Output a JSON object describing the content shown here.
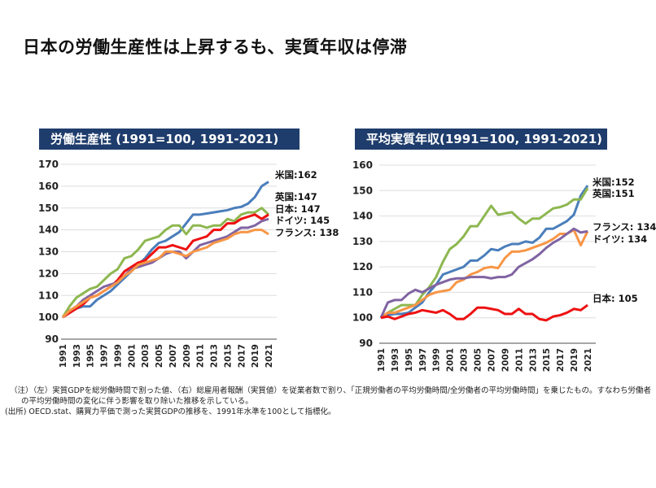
{
  "page_title": "日本の労働生産性は上昇するも、実質年収は停滞",
  "notes": [
    "（注）（左）実質GDPを総労働時間で割った値、（右）総雇用者報酬（実質値）を従業者数で割り、「正規労働者の平均労働時間/全労働者の平均労働時間」を乗じたもの。すなわち労働者の平均労働時間の変化に伴う影響を取り除いた推移を示している。",
    "(出所) OECD.stat、購買力平価で測った実質GDPの推移を、1991年水準を100として指標化。"
  ],
  "chart_data": [
    {
      "type": "line",
      "title": "労働生産性 (1991=100, 1991-2021)",
      "x": [
        1991,
        1992,
        1993,
        1994,
        1995,
        1996,
        1997,
        1998,
        1999,
        2000,
        2001,
        2002,
        2003,
        2004,
        2005,
        2006,
        2007,
        2008,
        2009,
        2010,
        2011,
        2012,
        2013,
        2014,
        2015,
        2016,
        2017,
        2018,
        2019,
        2020,
        2021
      ],
      "xticks": [
        "1991",
        "1993",
        "1995",
        "1997",
        "1999",
        "2001",
        "2003",
        "2005",
        "2007",
        "2009",
        "2011",
        "2013",
        "2015",
        "2017",
        "2019",
        "2021"
      ],
      "ylim": [
        90,
        170
      ],
      "yticks": [
        "90",
        "100",
        "110",
        "120",
        "130",
        "140",
        "150",
        "160",
        "170"
      ],
      "grid": true,
      "series": [
        {
          "name": "米国",
          "end_label": "米国:162",
          "color": "#4a7ebb",
          "values": [
            100,
            102,
            104,
            105,
            105,
            108,
            110,
            112,
            115,
            118,
            121,
            124,
            127,
            131,
            134,
            135,
            137,
            139,
            143,
            147,
            147,
            147.5,
            148,
            148.5,
            149,
            150,
            150.5,
            152,
            155,
            160,
            162
          ]
        },
        {
          "name": "英国",
          "end_label": "英国:147",
          "color": "#8db750",
          "values": [
            100,
            105,
            109,
            111,
            113,
            114,
            117,
            120,
            122,
            127,
            128,
            131,
            135,
            136,
            137,
            140,
            142,
            142,
            138,
            142,
            142,
            141,
            142,
            142,
            145,
            144,
            147,
            148,
            148,
            150,
            147
          ]
        },
        {
          "name": "日本",
          "end_label": "日本: 147",
          "color": "#ee1111",
          "values": [
            100,
            102,
            104,
            106,
            109,
            110,
            112,
            114,
            117,
            121,
            123,
            125,
            126,
            129,
            132,
            132,
            133,
            132,
            131,
            135,
            136,
            137,
            140,
            140,
            143,
            143,
            145,
            146,
            147,
            145,
            147
          ]
        },
        {
          "name": "ドイツ",
          "end_label": "ドイツ: 145",
          "color": "#8064a2",
          "values": [
            100,
            103,
            105,
            108,
            110,
            112,
            114,
            115,
            116,
            119,
            122,
            123,
            124,
            125,
            127,
            129,
            130,
            130,
            127,
            130,
            133,
            134,
            135,
            136,
            137,
            139,
            141,
            141,
            142,
            144,
            145
          ]
        },
        {
          "name": "フランス",
          "end_label": "フランス: 138",
          "color": "#f79646",
          "values": [
            100,
            103,
            105,
            107,
            109,
            110,
            112,
            114,
            116,
            119,
            121,
            124,
            125,
            126,
            127,
            130,
            130,
            129,
            128,
            130,
            131,
            132,
            134,
            135,
            136,
            138,
            139,
            139,
            140,
            140,
            138
          ]
        }
      ]
    },
    {
      "type": "line",
      "title": "平均実質年収(1991=100, 1991-2021)",
      "x": [
        1991,
        1992,
        1993,
        1994,
        1995,
        1996,
        1997,
        1998,
        1999,
        2000,
        2001,
        2002,
        2003,
        2004,
        2005,
        2006,
        2007,
        2008,
        2009,
        2010,
        2011,
        2012,
        2013,
        2014,
        2015,
        2016,
        2017,
        2018,
        2019,
        2020,
        2021
      ],
      "xticks": [
        "1991",
        "1993",
        "1995",
        "1997",
        "1999",
        "2001",
        "2003",
        "2005",
        "2007",
        "2009",
        "2011",
        "2013",
        "2015",
        "2017",
        "2019",
        "2021"
      ],
      "ylim": [
        90,
        160
      ],
      "yticks": [
        "90",
        "100",
        "110",
        "120",
        "130",
        "140",
        "150",
        "160"
      ],
      "grid": true,
      "series": [
        {
          "name": "米国",
          "end_label": "米国:152",
          "color": "#4a7ebb",
          "values": [
            100,
            101,
            101.5,
            101.5,
            102,
            104,
            106,
            110,
            113,
            117,
            118,
            119,
            120,
            122.5,
            122.5,
            124.5,
            127,
            126.5,
            128,
            129,
            129,
            130,
            129.5,
            131.5,
            135,
            135,
            136.5,
            138,
            140.5,
            148,
            152
          ]
        },
        {
          "name": "英国",
          "end_label": "英国:151",
          "color": "#8db750",
          "values": [
            100,
            102,
            103.5,
            105,
            105,
            105,
            109,
            112,
            116,
            122,
            127,
            129,
            132,
            136,
            136,
            140,
            144,
            140.5,
            141,
            141.5,
            139,
            137,
            139,
            139,
            141,
            143,
            143.5,
            144.5,
            146.5,
            146.5,
            151
          ]
        },
        {
          "name": "フランス",
          "end_label": "フランス: 134",
          "color": "#f79646",
          "values": [
            100,
            102,
            102,
            103,
            104,
            105,
            107,
            109,
            110,
            110.5,
            111,
            114,
            115,
            117,
            118,
            119.5,
            120,
            119.5,
            123.5,
            126,
            126,
            126.5,
            127.5,
            128.5,
            129.5,
            131,
            133,
            133,
            134.5,
            128.5,
            134
          ]
        },
        {
          "name": "ドイツ",
          "end_label": "ドイツ: 134",
          "color": "#8064a2",
          "values": [
            100,
            106,
            107,
            107,
            109.5,
            111,
            110,
            111.5,
            113,
            114,
            115,
            115.5,
            115.5,
            116,
            116,
            116,
            115.5,
            116,
            116,
            117,
            120,
            121.5,
            123,
            125,
            127.5,
            129.5,
            131,
            133,
            135,
            133.5,
            134
          ]
        },
        {
          "name": "日本",
          "end_label": "日本: 105",
          "color": "#ee1111",
          "values": [
            100,
            100.5,
            99.5,
            100.5,
            101.5,
            102,
            103,
            102.5,
            102,
            103,
            101.5,
            99.5,
            99.5,
            101.5,
            104,
            104,
            103.5,
            103,
            101.5,
            101.5,
            103.5,
            101.5,
            101.5,
            99.5,
            99,
            100.5,
            101,
            102,
            103.5,
            103,
            105
          ]
        }
      ]
    }
  ]
}
